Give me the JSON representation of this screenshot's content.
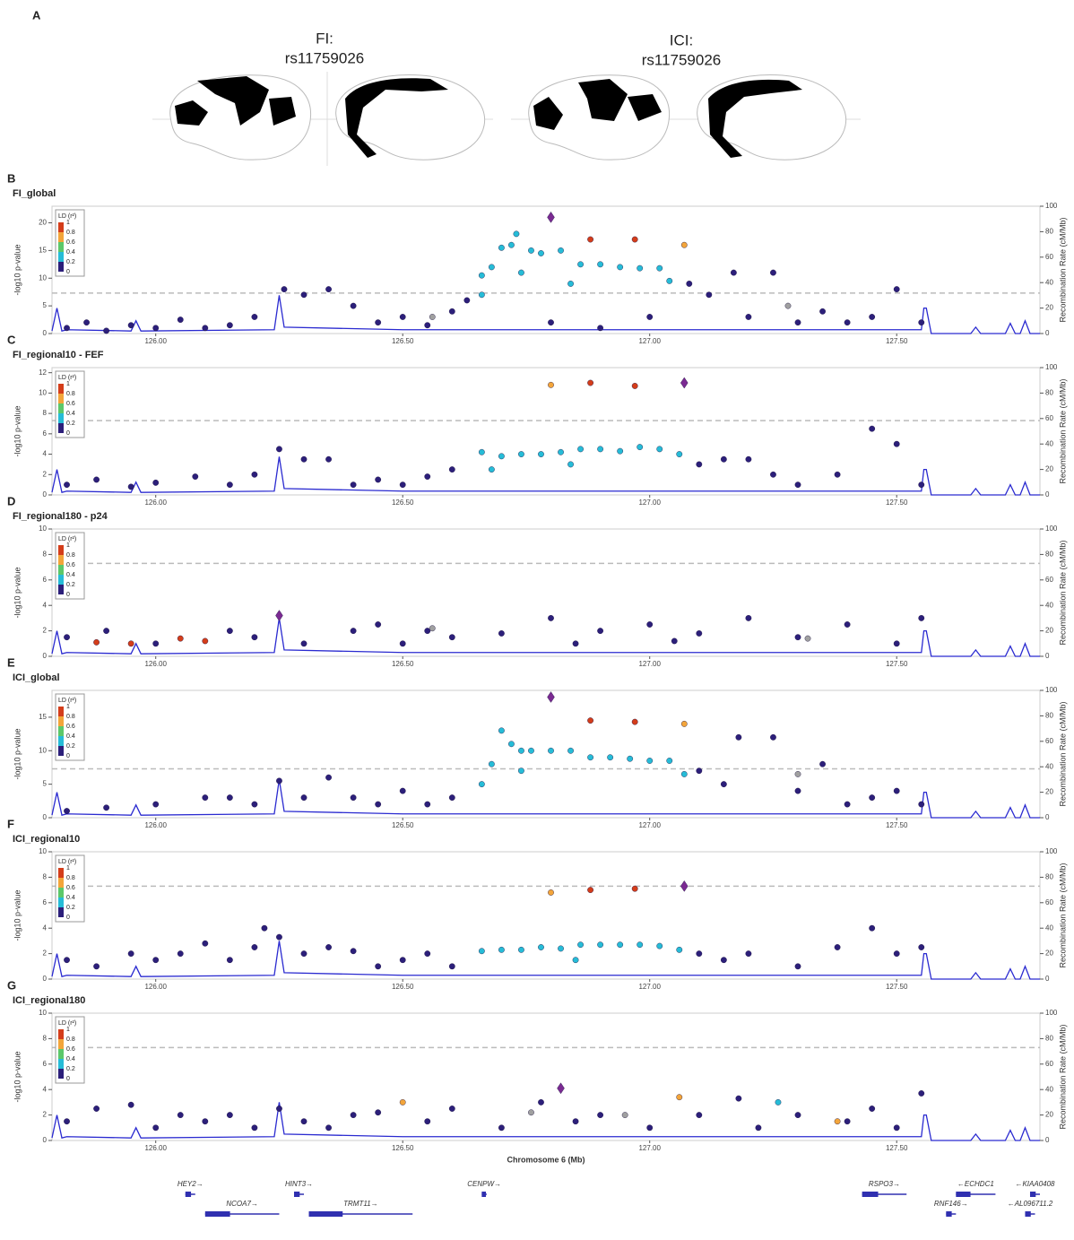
{
  "brain_panel": {
    "letter": "A",
    "maps": [
      {
        "trait": "FI:",
        "snp": "rs11759026"
      },
      {
        "trait": "ICI:",
        "snp": "rs11759026"
      }
    ]
  },
  "shared": {
    "xlim": [
      125.79,
      127.79
    ],
    "xticks": [
      {
        "value": 126,
        "label": "126.00"
      },
      {
        "value": 126.5,
        "label": "126.50"
      },
      {
        "value": 127,
        "label": "127.00"
      },
      {
        "value": 127.5,
        "label": "127.50"
      }
    ],
    "ylabel": "-log10 p-value",
    "y2label": "Recombination Rate (cM/Mb)",
    "y2lim": [
      0,
      100
    ],
    "y2ticks": [
      0,
      20,
      40,
      60,
      80,
      100
    ],
    "threshold": 7.3,
    "recombination": {
      "color": "#2a2ad0",
      "x": [
        125.79,
        125.8,
        125.81,
        125.82,
        125.95,
        125.96,
        125.97,
        126.24,
        126.25,
        126.26,
        126.5,
        127.0,
        127.55,
        127.555,
        127.56,
        127.57,
        127.65,
        127.66,
        127.67,
        127.72,
        127.73,
        127.74,
        127.75,
        127.76,
        127.77,
        127.79
      ],
      "values": [
        2,
        20,
        2,
        3,
        2,
        10,
        2,
        3,
        30,
        5,
        3,
        3,
        3,
        20,
        20,
        0,
        0,
        5,
        0,
        0,
        8,
        0,
        0,
        10,
        0,
        0
      ]
    },
    "ld_legend": {
      "title": "LD (r²)",
      "levels": [
        1,
        0.8,
        0.6,
        0.4,
        0.2,
        0
      ],
      "colors": [
        "#d43d1a",
        "#f3a53a",
        "#5cc86a",
        "#26bcd7",
        "#2c1f7a"
      ]
    }
  },
  "chart_data": [
    {
      "type": "scatter",
      "letter": "B",
      "title": "FI_global",
      "ylim": [
        0,
        23
      ],
      "yticks": [
        0,
        5,
        10,
        15,
        20
      ],
      "series": [
        {
          "color": "#2c1f7a",
          "marker": "circle",
          "x": [
            125.82,
            125.86,
            125.9,
            125.95,
            126.0,
            126.05,
            126.1,
            126.15,
            126.2,
            126.26,
            126.3,
            126.35,
            126.4,
            126.45,
            126.5,
            126.55,
            126.6,
            126.63,
            127.08,
            127.12,
            127.17,
            127.2,
            127.25,
            127.3,
            127.35,
            127.4,
            127.45,
            127.5,
            127.55,
            126.8,
            126.9,
            127.0
          ],
          "values": [
            1,
            2,
            0.5,
            1.5,
            1,
            2.5,
            1,
            1.5,
            3,
            8,
            7,
            8,
            5,
            2,
            3,
            1.5,
            4,
            6,
            9,
            7,
            11,
            3,
            11,
            2,
            4,
            2,
            3,
            8,
            2,
            2,
            1,
            3
          ]
        },
        {
          "color": "#a0a0a0",
          "marker": "circle",
          "x": [
            126.56,
            127.28
          ],
          "values": [
            3,
            5
          ]
        },
        {
          "color": "#26bcd7",
          "marker": "circle",
          "x": [
            126.66,
            126.68,
            126.7,
            126.72,
            126.74,
            126.76,
            126.78,
            126.82,
            126.84,
            126.86,
            126.9,
            126.94,
            126.98,
            127.02,
            127.04,
            126.73,
            126.66
          ],
          "values": [
            10.5,
            12,
            15.5,
            16,
            11,
            15,
            14.5,
            15,
            9,
            12.5,
            12.5,
            12,
            11.8,
            11.8,
            9.5,
            18,
            7
          ]
        },
        {
          "color": "#f3a53a",
          "marker": "circle",
          "x": [
            127.07
          ],
          "values": [
            16
          ]
        },
        {
          "color": "#d43d1a",
          "marker": "circle",
          "x": [
            126.88,
            126.97
          ],
          "values": [
            17,
            17
          ]
        },
        {
          "color": "#7b2a92",
          "marker": "diamond",
          "x": [
            126.8
          ],
          "values": [
            21
          ]
        }
      ]
    },
    {
      "type": "scatter",
      "letter": "C",
      "title": "FI_regional10  - FEF",
      "ylim": [
        0,
        12.5
      ],
      "yticks": [
        0,
        2,
        4,
        6,
        8,
        10,
        12
      ],
      "series": [
        {
          "color": "#2c1f7a",
          "marker": "circle",
          "x": [
            125.82,
            125.88,
            125.95,
            126.0,
            126.08,
            126.15,
            126.2,
            126.25,
            126.3,
            126.35,
            126.4,
            126.45,
            126.5,
            126.55,
            126.6,
            127.1,
            127.15,
            127.2,
            127.25,
            127.3,
            127.38,
            127.45,
            127.5,
            127.55
          ],
          "values": [
            1,
            1.5,
            0.8,
            1.2,
            1.8,
            1,
            2,
            4.5,
            3.5,
            3.5,
            1,
            1.5,
            1,
            1.8,
            2.5,
            3,
            3.5,
            3.5,
            2,
            1,
            2,
            6.5,
            5,
            1
          ]
        },
        {
          "color": "#26bcd7",
          "marker": "circle",
          "x": [
            126.66,
            126.7,
            126.74,
            126.78,
            126.82,
            126.86,
            126.9,
            126.94,
            126.98,
            127.02,
            127.06,
            126.68,
            126.84
          ],
          "values": [
            4.2,
            3.8,
            4,
            4,
            4.2,
            4.5,
            4.5,
            4.3,
            4.7,
            4.5,
            4,
            2.5,
            3
          ]
        },
        {
          "color": "#f3a53a",
          "marker": "circle",
          "x": [
            126.8
          ],
          "values": [
            10.8
          ]
        },
        {
          "color": "#d43d1a",
          "marker": "circle",
          "x": [
            126.88,
            126.97
          ],
          "values": [
            11,
            10.7
          ]
        },
        {
          "color": "#7b2a92",
          "marker": "diamond",
          "x": [
            127.07
          ],
          "values": [
            11
          ]
        }
      ]
    },
    {
      "type": "scatter",
      "letter": "D",
      "title": "FI_regional180  - p24",
      "ylim": [
        0,
        10
      ],
      "yticks": [
        0,
        2,
        4,
        6,
        8,
        10
      ],
      "series": [
        {
          "color": "#2c1f7a",
          "marker": "circle",
          "x": [
            125.82,
            125.9,
            126.0,
            126.15,
            126.2,
            126.3,
            126.4,
            126.45,
            126.5,
            126.55,
            126.6,
            126.7,
            126.8,
            126.85,
            126.9,
            127.0,
            127.05,
            127.1,
            127.2,
            127.3,
            127.4,
            127.5,
            127.55
          ],
          "values": [
            1.5,
            2,
            1,
            2,
            1.5,
            1,
            2,
            2.5,
            1,
            2,
            1.5,
            1.8,
            3,
            1,
            2,
            2.5,
            1.2,
            1.8,
            3,
            1.5,
            2.5,
            1,
            3
          ]
        },
        {
          "color": "#a0a0a0",
          "marker": "circle",
          "x": [
            126.56,
            127.32
          ],
          "values": [
            2.2,
            1.4
          ]
        },
        {
          "color": "#d43d1a",
          "marker": "circle",
          "x": [
            125.88,
            125.95,
            126.05,
            126.1
          ],
          "values": [
            1.1,
            1,
            1.4,
            1.2
          ]
        },
        {
          "color": "#7b2a92",
          "marker": "diamond",
          "x": [
            126.25
          ],
          "values": [
            3.2
          ]
        }
      ]
    },
    {
      "type": "scatter",
      "letter": "E",
      "title": "ICI_global",
      "ylim": [
        0,
        19
      ],
      "yticks": [
        0,
        5,
        10,
        15
      ],
      "series": [
        {
          "color": "#2c1f7a",
          "marker": "circle",
          "x": [
            125.82,
            125.9,
            126.0,
            126.1,
            126.15,
            126.2,
            126.25,
            126.3,
            126.35,
            126.4,
            126.45,
            126.5,
            126.55,
            126.6,
            127.1,
            127.15,
            127.18,
            127.25,
            127.3,
            127.35,
            127.4,
            127.45,
            127.5,
            127.55
          ],
          "values": [
            1,
            1.5,
            2,
            3,
            3,
            2,
            5.5,
            3,
            6,
            3,
            2,
            4,
            2,
            3,
            7,
            5,
            12,
            12,
            4,
            8,
            2,
            3,
            4,
            2
          ]
        },
        {
          "color": "#a0a0a0",
          "marker": "circle",
          "x": [
            127.3
          ],
          "values": [
            6.5
          ]
        },
        {
          "color": "#26bcd7",
          "marker": "circle",
          "x": [
            126.66,
            126.68,
            126.7,
            126.72,
            126.74,
            126.76,
            126.8,
            126.84,
            126.88,
            126.92,
            126.96,
            127.0,
            127.04,
            127.07,
            126.74
          ],
          "values": [
            5,
            8,
            13,
            11,
            10,
            10,
            10,
            10,
            9,
            9,
            8.8,
            8.5,
            8.5,
            6.5,
            7
          ]
        },
        {
          "color": "#f3a53a",
          "marker": "circle",
          "x": [
            127.07
          ],
          "values": [
            14
          ]
        },
        {
          "color": "#d43d1a",
          "marker": "circle",
          "x": [
            126.88,
            126.97
          ],
          "values": [
            14.5,
            14.3
          ]
        },
        {
          "color": "#7b2a92",
          "marker": "diamond",
          "x": [
            126.8
          ],
          "values": [
            18
          ]
        }
      ]
    },
    {
      "type": "scatter",
      "letter": "F",
      "title": "ICI_regional10",
      "ylim": [
        0,
        10
      ],
      "yticks": [
        0,
        2,
        4,
        6,
        8,
        10
      ],
      "series": [
        {
          "color": "#2c1f7a",
          "marker": "circle",
          "x": [
            125.82,
            125.88,
            125.95,
            126.0,
            126.05,
            126.1,
            126.15,
            126.2,
            126.22,
            126.25,
            126.3,
            126.35,
            126.4,
            126.45,
            126.5,
            126.55,
            126.6,
            127.1,
            127.15,
            127.2,
            127.3,
            127.38,
            127.45,
            127.5,
            127.55
          ],
          "values": [
            1.5,
            1,
            2,
            1.5,
            2,
            2.8,
            1.5,
            2.5,
            4,
            3.3,
            2,
            2.5,
            2.2,
            1,
            1.5,
            2,
            1,
            2,
            1.5,
            2,
            1,
            2.5,
            4,
            2,
            2.5
          ]
        },
        {
          "color": "#26bcd7",
          "marker": "circle",
          "x": [
            126.66,
            126.7,
            126.74,
            126.78,
            126.82,
            126.86,
            126.9,
            126.94,
            126.98,
            127.02,
            127.06,
            126.85
          ],
          "values": [
            2.2,
            2.3,
            2.3,
            2.5,
            2.4,
            2.7,
            2.7,
            2.7,
            2.7,
            2.6,
            2.3,
            1.5
          ]
        },
        {
          "color": "#f3a53a",
          "marker": "circle",
          "x": [
            126.8
          ],
          "values": [
            6.8
          ]
        },
        {
          "color": "#d43d1a",
          "marker": "circle",
          "x": [
            126.88,
            126.97
          ],
          "values": [
            7,
            7.1
          ]
        },
        {
          "color": "#7b2a92",
          "marker": "diamond",
          "x": [
            127.07
          ],
          "values": [
            7.3
          ]
        }
      ]
    },
    {
      "type": "scatter",
      "letter": "G",
      "title": "ICI_regional180",
      "xlabel": "Chromosome 6 (Mb)",
      "ylim": [
        0,
        10
      ],
      "yticks": [
        0,
        2,
        4,
        6,
        8,
        10
      ],
      "series": [
        {
          "color": "#2c1f7a",
          "marker": "circle",
          "x": [
            125.82,
            125.88,
            125.95,
            126.0,
            126.05,
            126.1,
            126.15,
            126.2,
            126.25,
            126.3,
            126.35,
            126.4,
            126.45,
            126.55,
            126.6,
            126.7,
            126.78,
            126.85,
            126.9,
            127.0,
            127.1,
            127.18,
            127.22,
            127.3,
            127.4,
            127.45,
            127.5,
            127.55
          ],
          "values": [
            1.5,
            2.5,
            2.8,
            1,
            2,
            1.5,
            2,
            1,
            2.5,
            1.5,
            1,
            2,
            2.2,
            1.5,
            2.5,
            1,
            3,
            1.5,
            2,
            1,
            2,
            3.3,
            1,
            2,
            1.5,
            2.5,
            1,
            3.7
          ]
        },
        {
          "color": "#a0a0a0",
          "marker": "circle",
          "x": [
            126.76,
            126.95
          ],
          "values": [
            2.2,
            2
          ]
        },
        {
          "color": "#26bcd7",
          "marker": "circle",
          "x": [
            127.26
          ],
          "values": [
            3
          ]
        },
        {
          "color": "#f3a53a",
          "marker": "circle",
          "x": [
            126.5,
            127.06,
            127.38
          ],
          "values": [
            3,
            3.4,
            1.5
          ]
        },
        {
          "color": "#7b2a92",
          "marker": "diamond",
          "x": [
            126.82
          ],
          "values": [
            4.1
          ]
        }
      ]
    }
  ],
  "genes": [
    {
      "label": "HEY2→",
      "start": 126.06,
      "end": 126.08
    },
    {
      "label": "NCOA7→",
      "start": 126.1,
      "end": 126.25
    },
    {
      "label": "HINT3→",
      "start": 126.28,
      "end": 126.3
    },
    {
      "label": "TRMT11→",
      "start": 126.31,
      "end": 126.52
    },
    {
      "label": "CENPW→",
      "start": 126.66,
      "end": 126.67
    },
    {
      "label": "RSPO3→",
      "start": 127.43,
      "end": 127.52
    },
    {
      "label": "←ECHDC1",
      "start": 127.62,
      "end": 127.7
    },
    {
      "label": "RNF146→",
      "start": 127.6,
      "end": 127.62
    },
    {
      "label": "←KIAA0408",
      "start": 127.77,
      "end": 127.79
    },
    {
      "label": "←AL096711.2",
      "start": 127.76,
      "end": 127.78
    }
  ]
}
